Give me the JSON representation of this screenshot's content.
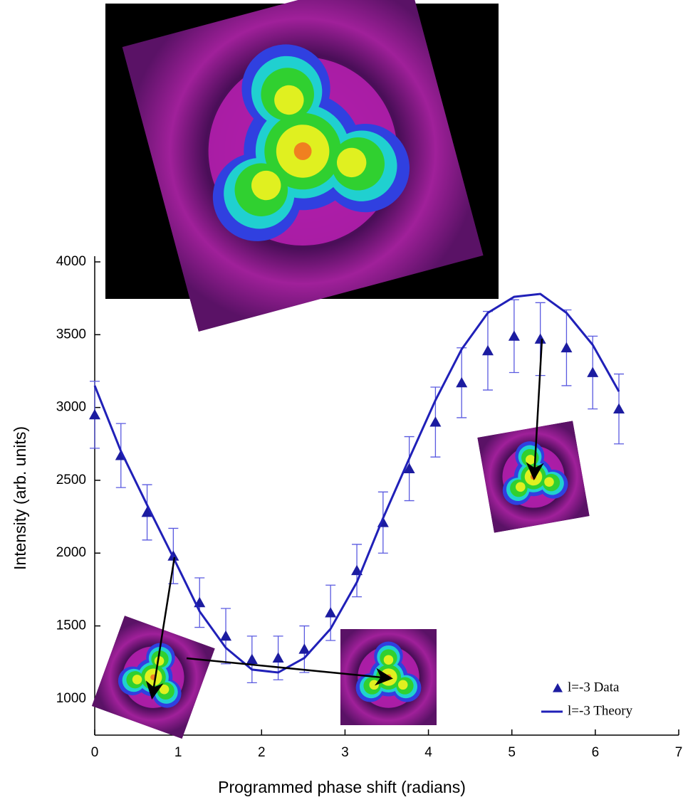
{
  "chart_data": {
    "type": "scatter",
    "x_label": "Programmed phase shift (radians)",
    "y_label": "Intensity (arb. units)",
    "x": [
      0,
      0.314,
      0.628,
      0.942,
      1.257,
      1.571,
      1.885,
      2.199,
      2.513,
      2.827,
      3.142,
      3.456,
      3.77,
      4.084,
      4.398,
      4.712,
      5.027,
      5.341,
      5.655,
      5.969,
      6.283
    ],
    "series": [
      {
        "name": "l=-3 Data",
        "color": "#1c1ca0",
        "marker": "triangle",
        "values": [
          2950,
          2670,
          2280,
          1980,
          1660,
          1430,
          1270,
          1280,
          1340,
          1590,
          1880,
          2210,
          2580,
          2900,
          3170,
          3390,
          3490,
          3470,
          3410,
          3240,
          2990
        ],
        "errors": [
          230,
          220,
          190,
          190,
          170,
          190,
          160,
          150,
          160,
          190,
          180,
          210,
          220,
          240,
          240,
          270,
          250,
          250,
          260,
          250,
          240
        ],
        "error_color": "#5a5ae0"
      },
      {
        "name": "l=-3 Theory",
        "color": "#2020b8",
        "marker": "line",
        "values": [
          3150,
          2700,
          2330,
          1970,
          1600,
          1350,
          1200,
          1180,
          1280,
          1480,
          1800,
          2240,
          2650,
          3050,
          3400,
          3650,
          3760,
          3780,
          3650,
          3430,
          3110
        ]
      }
    ],
    "xlim": [
      0,
      7
    ],
    "xticks": [
      0,
      1,
      2,
      3,
      4,
      5,
      6,
      7
    ],
    "ylim": [
      750,
      4000
    ],
    "yticks": [
      1000,
      1500,
      2000,
      2500,
      3000,
      3500,
      4000
    ],
    "legend": "lower right"
  }
}
